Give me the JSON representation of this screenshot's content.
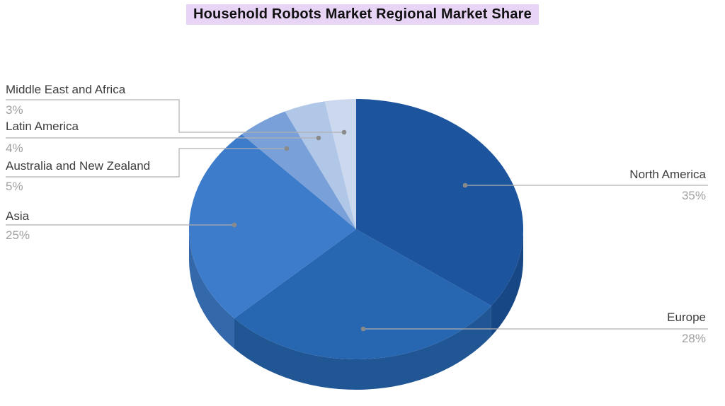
{
  "title": "Household Robots Market Regional Market Share",
  "styles": {
    "title_highlight": "#e8d5f6",
    "region_label_color": "#3d3d3d",
    "percent_label_color": "#a0a0a0",
    "leader_line_color": "#b0b0b0",
    "leader_dot_color": "#8a8a8a"
  },
  "chart_data": {
    "type": "pie",
    "title": "Household Robots Market Regional Market Share",
    "effect": "3d",
    "unit": "%",
    "start_angle_deg": -90,
    "direction": "clockwise",
    "legend_position": "callout-labels",
    "slices": [
      {
        "label": "North America",
        "value": 35,
        "display": "35%",
        "color": "#1d549e"
      },
      {
        "label": "Europe",
        "value": 28,
        "display": "28%",
        "color": "#2766b1"
      },
      {
        "label": "Asia",
        "value": 25,
        "display": "25%",
        "color": "#3d7ccb"
      },
      {
        "label": "Australia and New Zealand",
        "value": 5,
        "display": "5%",
        "color": "#79a0d8"
      },
      {
        "label": "Latin America",
        "value": 4,
        "display": "4%",
        "color": "#b0c7e8"
      },
      {
        "label": "Middle East and Africa",
        "value": 3,
        "display": "3%",
        "color": "#cbd8ee"
      }
    ]
  }
}
